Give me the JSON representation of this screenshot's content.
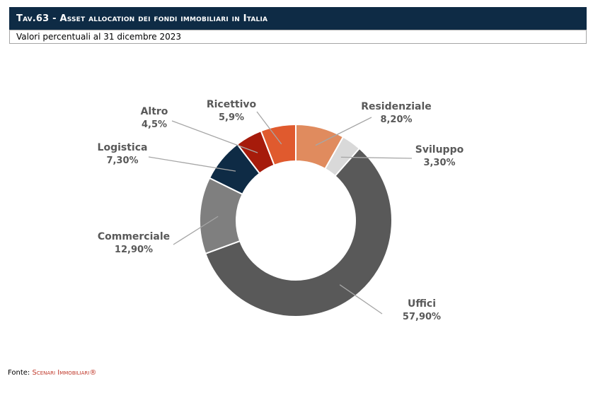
{
  "header": {
    "title": "Tav.63 - Asset allocation dei fondi immobiliari in Italia",
    "subtitle": "Valori percentuali al 31 dicembre 2023"
  },
  "source": {
    "label": "Fonte: ",
    "name": "Scenari Immobiliari®"
  },
  "chart_data": {
    "type": "pie",
    "donut": true,
    "start_category": "Residenziale",
    "direction": "clockwise",
    "legend": "none",
    "categories": [
      "Residenziale",
      "Sviluppo",
      "Uffici",
      "Commerciale",
      "Logistica",
      "Altro",
      "Ricettivo"
    ],
    "values": [
      8.2,
      3.3,
      57.9,
      12.9,
      7.3,
      4.5,
      5.9
    ],
    "value_labels": [
      "8,20%",
      "3,30%",
      "57,90%",
      "12,90%",
      "7,30%",
      "4,5%",
      "5,9%"
    ],
    "colors": [
      "#e08b5e",
      "#d9d9d9",
      "#595959",
      "#7f7f7f",
      "#0e2b45",
      "#a61b0b",
      "#e05a2e"
    ]
  }
}
